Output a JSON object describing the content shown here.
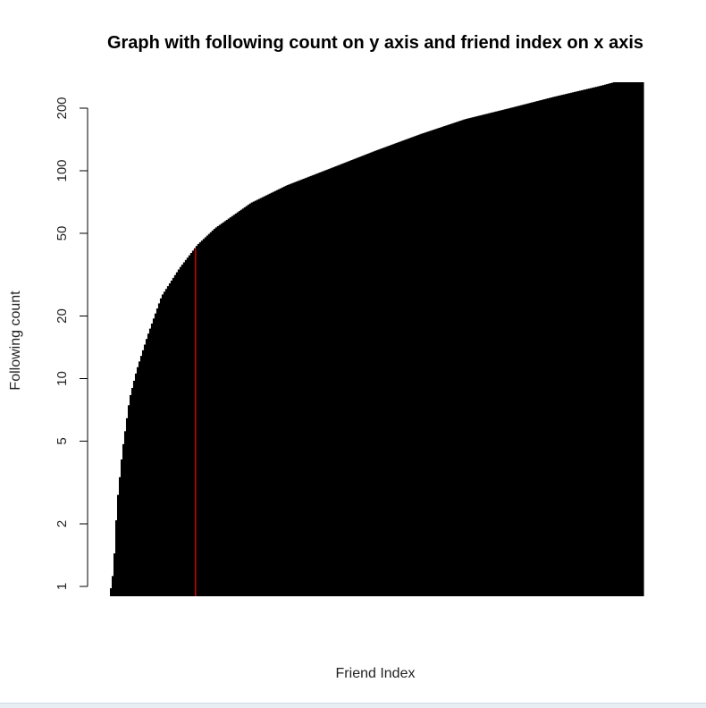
{
  "chart_data": {
    "type": "bar",
    "title": "Graph with following count on y axis and friend index on x axis",
    "xlabel": "Friend Index",
    "ylabel": "Following count",
    "y_scale": "log",
    "ylim": [
      1,
      260
    ],
    "y_ticks": [
      1,
      2,
      5,
      10,
      20,
      50,
      100,
      200
    ],
    "x_tick_labels_shown": false,
    "n_bars": 300,
    "curve": [
      {
        "i": 0,
        "v": 0.8
      },
      {
        "i": 3,
        "v": 1.2
      },
      {
        "i": 5,
        "v": 2.5
      },
      {
        "i": 8,
        "v": 4.5
      },
      {
        "i": 12,
        "v": 8
      },
      {
        "i": 16,
        "v": 11
      },
      {
        "i": 22,
        "v": 16
      },
      {
        "i": 30,
        "v": 25
      },
      {
        "i": 40,
        "v": 34
      },
      {
        "i": 50,
        "v": 44
      },
      {
        "i": 60,
        "v": 53
      },
      {
        "i": 80,
        "v": 70
      },
      {
        "i": 100,
        "v": 85
      },
      {
        "i": 125,
        "v": 103
      },
      {
        "i": 150,
        "v": 125
      },
      {
        "i": 175,
        "v": 150
      },
      {
        "i": 200,
        "v": 177
      },
      {
        "i": 225,
        "v": 200
      },
      {
        "i": 250,
        "v": 227
      },
      {
        "i": 275,
        "v": 255
      },
      {
        "i": 300,
        "v": 290
      }
    ],
    "bar_color": "#000000",
    "reference_line": {
      "x_index": 49,
      "color": "#cc0000"
    },
    "grid": false,
    "legend": "none"
  }
}
